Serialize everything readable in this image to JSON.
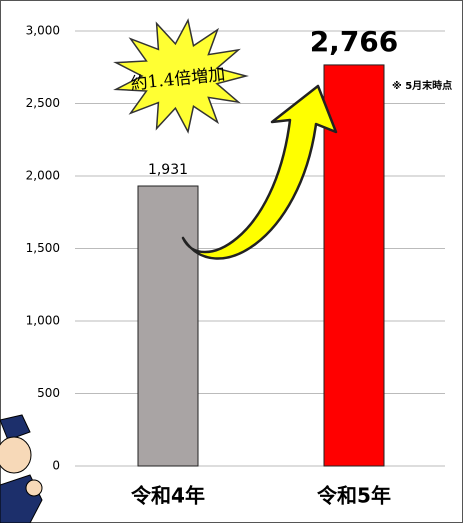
{
  "chart_data": {
    "type": "bar",
    "categories": [
      "令和4年",
      "令和5年"
    ],
    "values": [
      1931,
      2766
    ],
    "value_labels": [
      "1,931",
      "2,766"
    ],
    "colors": [
      "#a9a4a4",
      "#ff0000"
    ],
    "ylim": [
      0,
      3000
    ],
    "yticks": [
      0,
      500,
      {
        "value": 1000,
        "label": "1,000"
      },
      {
        "value": 1500,
        "label": "1,500"
      },
      {
        "value": 2000,
        "label": "2,000"
      },
      {
        "value": 2500,
        "label": "2,500"
      },
      {
        "value": 3000,
        "label": "3,000"
      }
    ],
    "grid": true,
    "annotations": [
      "約1.4倍増加",
      "※ 5月末時点"
    ]
  }
}
